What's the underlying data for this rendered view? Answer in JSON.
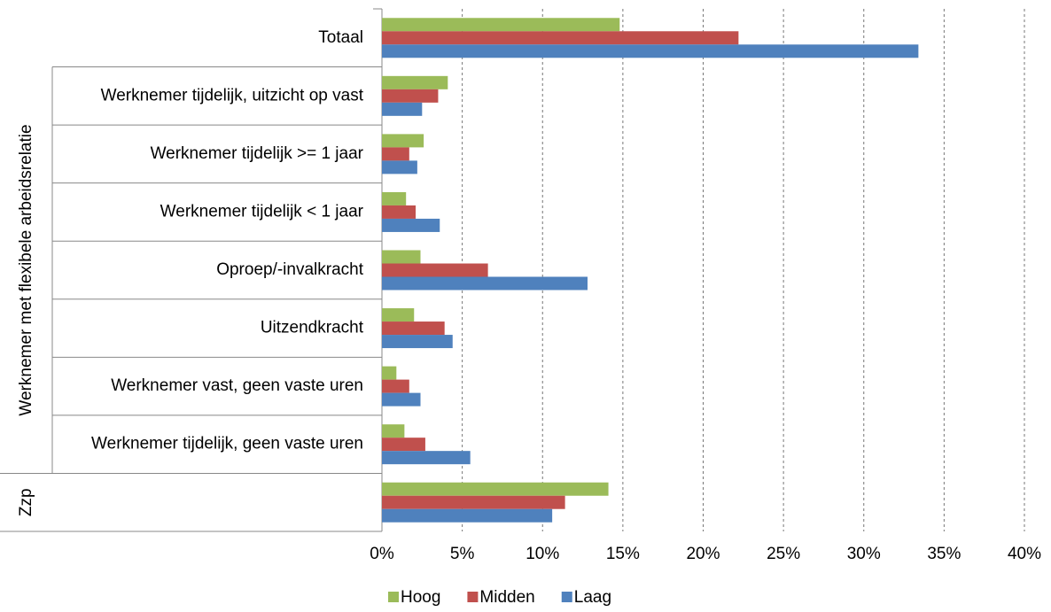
{
  "chart_data": {
    "type": "hbar",
    "categories": [
      "Totaal",
      "Werknemer tijdelijk, uitzicht op vast",
      "Werknemer tijdelijk >= 1 jaar",
      "Werknemer tijdelijk < 1 jaar",
      "Oproep/-invalkracht",
      "Uitzendkracht",
      "Werknemer vast, geen vaste uren",
      "Werknemer tijdelijk, geen vaste uren",
      null
    ],
    "groups": [
      {
        "label": "Werknemer met flexibele arbeidsrelatie",
        "span": [
          1,
          7
        ]
      },
      {
        "label": "Zzp",
        "span": [
          8,
          8
        ]
      }
    ],
    "series": [
      {
        "name": "Hoog",
        "color": "#9bbb59",
        "values": [
          14.8,
          4.1,
          2.6,
          1.5,
          2.4,
          2.0,
          0.9,
          1.4,
          14.1
        ]
      },
      {
        "name": "Midden",
        "color": "#c0504d",
        "values": [
          22.2,
          3.5,
          1.7,
          2.1,
          6.6,
          3.9,
          1.7,
          2.7,
          11.4
        ]
      },
      {
        "name": "Laag",
        "color": "#4f81bd",
        "values": [
          33.4,
          2.5,
          2.2,
          3.6,
          12.8,
          4.4,
          2.4,
          5.5,
          10.6
        ]
      }
    ],
    "xlim": [
      0,
      40
    ],
    "xticks": [
      {
        "value": 0,
        "label": "0%"
      },
      {
        "value": 5,
        "label": "5%"
      },
      {
        "value": 10,
        "label": "10%"
      },
      {
        "value": 15,
        "label": "15%"
      },
      {
        "value": 20,
        "label": "20%"
      },
      {
        "value": 25,
        "label": "25%"
      },
      {
        "value": 30,
        "label": "30%"
      },
      {
        "value": 35,
        "label": "35%"
      },
      {
        "value": 40,
        "label": "40%"
      }
    ],
    "grid": true,
    "legend": "bottom"
  }
}
